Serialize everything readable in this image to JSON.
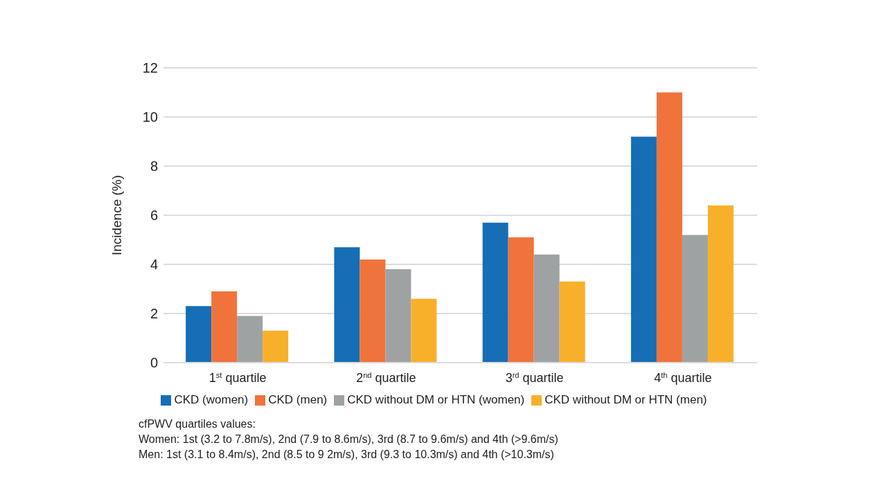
{
  "chart_data": {
    "type": "bar",
    "ylabel": "Incidence (%)",
    "categories": [
      "1$^{st}$ quartile",
      "2$^{nd}$ quartile",
      "3$^{rd}$ quartile",
      "4$^{th}$ quartile"
    ],
    "series": [
      {
        "name": "CKD (women)",
        "color": "#156eb6",
        "values": [
          2.3,
          4.7,
          5.7,
          9.2
        ]
      },
      {
        "name": "CKD (men)",
        "color": "#f0733b",
        "values": [
          2.9,
          4.2,
          5.1,
          11.0
        ]
      },
      {
        "name": "CKD without DM or HTN (women)",
        "color": "#9fa2a3",
        "values": [
          1.9,
          3.8,
          4.4,
          5.2
        ]
      },
      {
        "name": "CKD without DM or HTN (men)",
        "color": "#f8b02b",
        "values": [
          1.3,
          2.6,
          3.3,
          6.4
        ]
      }
    ],
    "ylim": [
      0,
      12
    ],
    "yticks": [
      0,
      2,
      4,
      6,
      8,
      10,
      12
    ],
    "grid": "y",
    "legend": "bottom",
    "annotations": [
      "cfPWV quartiles values:",
      "Women: 1st (3.2 to 7.8m/s), 2nd (7.9 to 8.6m/s), 3rd (8.7 to 9.6m/s) and 4th (>9.6m/s)",
      "Men: 1st (3.1 to 8.4m/s), 2nd (8.5 to 9 2m/s), 3rd (9.3 to 10.3m/s) and 4th (>10.3m/s)"
    ]
  }
}
